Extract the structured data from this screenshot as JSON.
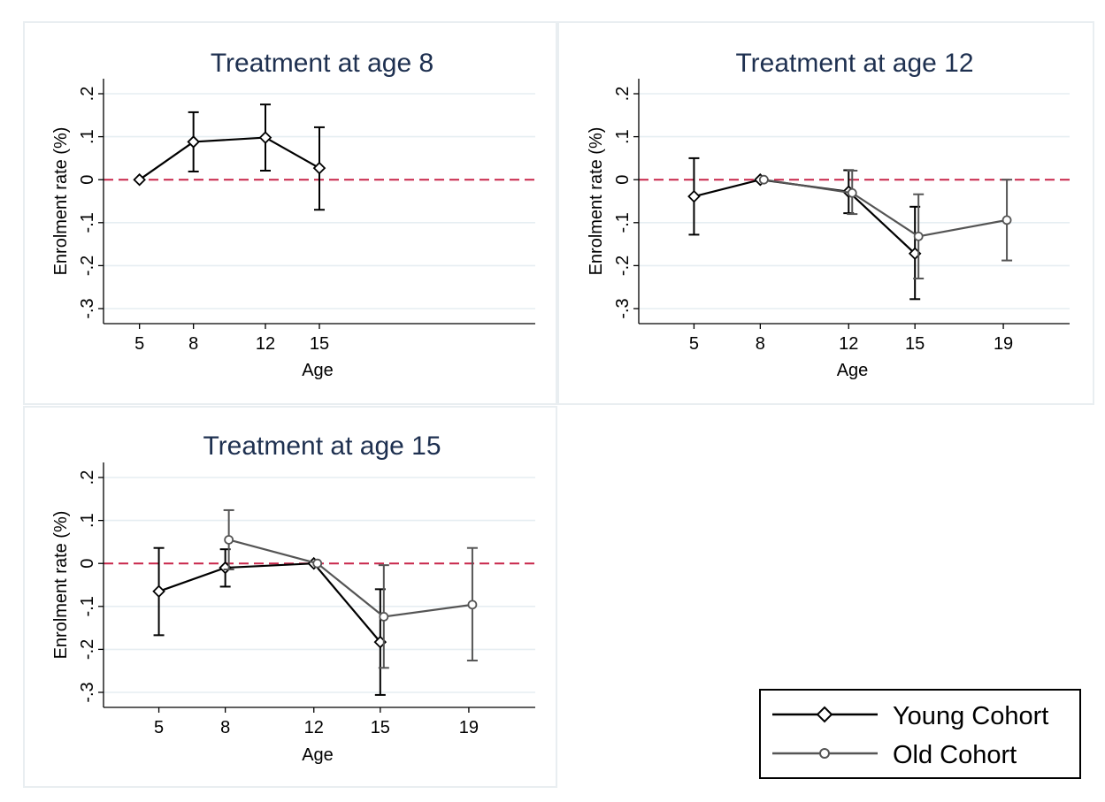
{
  "chart_data": [
    {
      "type": "line",
      "title": "Treatment at age 8",
      "xlabel": "Age",
      "ylabel": "Enrolment rate (%)",
      "x_ticks": [
        5,
        8,
        12,
        15
      ],
      "x_tick_labels": [
        "5",
        "8",
        "12",
        "15"
      ],
      "y_ticks": [
        0.2,
        0.1,
        0,
        -0.1,
        -0.2,
        -0.3
      ],
      "y_tick_labels": [
        ".2",
        ".1",
        "0",
        "-.1",
        "-.2",
        "-.3"
      ],
      "ylim": [
        -0.335,
        0.235
      ],
      "xlim": [
        3,
        27
      ],
      "reference_line": {
        "y": 0,
        "style": "dashed",
        "color": "#c8264a"
      },
      "grid": true,
      "series": [
        {
          "name": "Young Cohort",
          "color": "#000000",
          "marker": "diamond",
          "x": [
            5,
            8,
            12,
            15
          ],
          "y": [
            0.0,
            0.088,
            0.098,
            0.027
          ],
          "ci_low": [
            0.0,
            0.019,
            0.021,
            -0.07
          ],
          "ci_high": [
            0.0,
            0.157,
            0.175,
            0.122
          ]
        }
      ]
    },
    {
      "type": "line",
      "title": "Treatment at age 12",
      "xlabel": "Age",
      "ylabel": "Enrolment rate (%)",
      "x_ticks": [
        5,
        8,
        12,
        15,
        19
      ],
      "x_tick_labels": [
        "5",
        "8",
        "12",
        "15",
        "19"
      ],
      "y_ticks": [
        0.2,
        0.1,
        0,
        -0.1,
        -0.2,
        -0.3
      ],
      "y_tick_labels": [
        ".2",
        ".1",
        "0",
        "-.1",
        "-.2",
        "-.3"
      ],
      "ylim": [
        -0.335,
        0.235
      ],
      "xlim": [
        2.5,
        22
      ],
      "reference_line": {
        "y": 0,
        "style": "dashed",
        "color": "#c8264a"
      },
      "grid": true,
      "series": [
        {
          "name": "Young Cohort",
          "color": "#000000",
          "marker": "diamond",
          "x": [
            5,
            8,
            12,
            15
          ],
          "y": [
            -0.039,
            0.0,
            -0.028,
            -0.172
          ],
          "ci_low": [
            -0.128,
            0.0,
            -0.078,
            -0.278
          ],
          "ci_high": [
            0.05,
            0.0,
            0.022,
            -0.063
          ]
        },
        {
          "name": "Old Cohort",
          "color": "#555555",
          "marker": "circle",
          "x": [
            8,
            12,
            15,
            19
          ],
          "y": [
            0.0,
            -0.031,
            -0.132,
            -0.094
          ],
          "ci_low": [
            0.0,
            -0.08,
            -0.23,
            -0.188
          ],
          "ci_high": [
            0.0,
            0.021,
            -0.034,
            0.0
          ]
        }
      ]
    },
    {
      "type": "line",
      "title": "Treatment at age 15",
      "xlabel": "Age",
      "ylabel": "Enrolment rate (%)",
      "x_ticks": [
        5,
        8,
        12,
        15,
        19
      ],
      "x_tick_labels": [
        "5",
        "8",
        "12",
        "15",
        "19"
      ],
      "y_ticks": [
        0.2,
        0.1,
        0,
        -0.1,
        -0.2,
        -0.3
      ],
      "y_tick_labels": [
        ".2",
        ".1",
        "0",
        "-.1",
        "-.2",
        "-.3"
      ],
      "ylim": [
        -0.335,
        0.235
      ],
      "xlim": [
        2.5,
        22
      ],
      "reference_line": {
        "y": 0,
        "style": "dashed",
        "color": "#c8264a"
      },
      "grid": true,
      "series": [
        {
          "name": "Young Cohort",
          "color": "#000000",
          "marker": "diamond",
          "x": [
            5,
            8,
            12,
            15
          ],
          "y": [
            -0.065,
            -0.01,
            0.0,
            -0.183
          ],
          "ci_low": [
            -0.167,
            -0.054,
            0.0,
            -0.306
          ],
          "ci_high": [
            0.036,
            0.033,
            0.0,
            -0.06
          ]
        },
        {
          "name": "Old Cohort",
          "color": "#555555",
          "marker": "circle",
          "x": [
            8,
            12,
            15,
            19
          ],
          "y": [
            0.055,
            0.0,
            -0.124,
            -0.096
          ],
          "ci_low": [
            -0.014,
            0.0,
            -0.243,
            -0.226
          ],
          "ci_high": [
            0.124,
            0.0,
            -0.004,
            0.036
          ]
        }
      ]
    }
  ],
  "legend": {
    "placement": "bottom-right",
    "entries": [
      {
        "label": "Young Cohort",
        "color": "#000000",
        "marker": "diamond"
      },
      {
        "label": "Old Cohort",
        "color": "#555555",
        "marker": "circle"
      }
    ]
  }
}
